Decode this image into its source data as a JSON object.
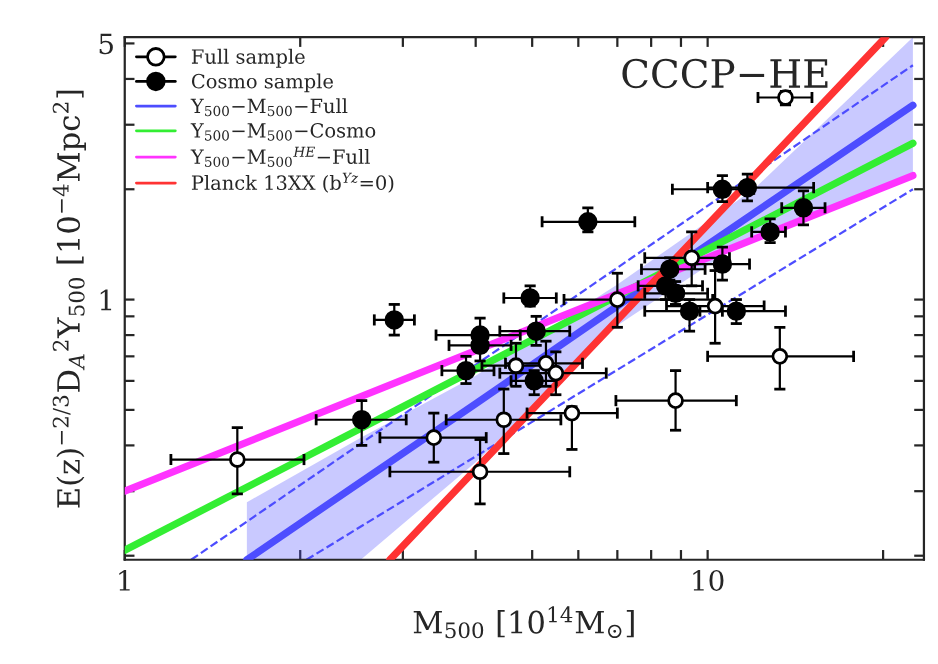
{
  "chart_data": {
    "type": "scatter",
    "title": "CCCP−HE",
    "xlabel": "M$_{500}$ [10$^{14}$M$_{⊙}$]",
    "ylabel": "E(z)$^{−2/3}$D$_{A}$$^{2}$Y$_{500}$ [10$^{−4}$Mpc$^{2}$]",
    "log": "xy",
    "xlim": [
      1,
      23.5
    ],
    "ylim": [
      0.195,
      5.2
    ],
    "xticks": [
      1,
      {
        "value": 2,
        "label": null
      },
      {
        "value": 3,
        "label": null
      },
      {
        "value": 4,
        "label": null
      },
      {
        "value": 5,
        "label": null
      },
      {
        "value": 6,
        "label": null
      },
      {
        "value": 7,
        "label": null
      },
      {
        "value": 8,
        "label": null
      },
      {
        "value": 9,
        "label": null
      },
      10,
      {
        "value": 20,
        "label": null
      }
    ],
    "yticks": [
      {
        "value": 0.2,
        "label": null
      },
      {
        "value": 0.3,
        "label": null
      },
      {
        "value": 0.4,
        "label": null
      },
      {
        "value": 0.5,
        "label": null
      },
      {
        "value": 0.6,
        "label": null
      },
      {
        "value": 0.7,
        "label": null
      },
      {
        "value": 0.8,
        "label": null
      },
      {
        "value": 0.9,
        "label": null
      },
      1,
      {
        "value": 2,
        "label": null
      },
      {
        "value": 3,
        "label": null
      },
      {
        "value": 4,
        "label": null
      },
      5
    ],
    "grid": false,
    "legend": "top left",
    "series": [
      {
        "name": "Full sample",
        "marker": "circle",
        "color": "#000000",
        "x": [
          1.56,
          3.39,
          4.07,
          4.47,
          4.69,
          5.28,
          5.49,
          5.85,
          7.0,
          8.81,
          9.39,
          10.3,
          13.3,
          13.6
        ],
        "values": [
          0.366,
          0.42,
          0.339,
          0.47,
          0.66,
          0.67,
          0.63,
          0.49,
          1.0,
          0.53,
          1.3,
          0.96,
          0.7,
          3.56
        ],
        "errors": [
          [
            0.295,
            0.447
          ],
          [
            0.36,
            0.49
          ],
          [
            0.277,
            0.415
          ],
          [
            0.38,
            0.57
          ],
          [
            0.58,
            0.76
          ],
          [
            0.58,
            0.77
          ],
          [
            0.55,
            0.72
          ],
          [
            0.39,
            0.51
          ],
          [
            0.84,
            1.18
          ],
          [
            0.44,
            0.64
          ],
          [
            1.09,
            1.53
          ],
          [
            0.76,
            1.2
          ],
          [
            0.57,
            0.84
          ],
          [
            3.4,
            3.7
          ]
        ],
        "xerrors": [
          [
            1.2,
            2.03
          ],
          [
            2.74,
            4.17
          ],
          [
            2.85,
            5.8
          ],
          [
            3.56,
            5.6
          ],
          [
            4.1,
            5.3
          ],
          [
            4.5,
            6.1
          ],
          [
            4.4,
            6.7
          ],
          [
            4.9,
            7.0
          ],
          [
            5.67,
            10.2
          ],
          [
            6.96,
            11.2
          ],
          [
            7.8,
            10.9
          ],
          [
            8.5,
            12.5
          ],
          [
            10.0,
            17.8
          ],
          [
            12.2,
            15.1
          ]
        ]
      },
      {
        "name": "Cosmo sample",
        "marker": "circle",
        "color": "#000000",
        "x": [
          2.55,
          2.9,
          3.85,
          4.07,
          4.07,
          4.96,
          5.04,
          5.08,
          6.23,
          8.47,
          8.61,
          8.81,
          9.31,
          10.6,
          10.6,
          11.2,
          11.7,
          12.8,
          14.6
        ],
        "values": [
          0.47,
          0.88,
          0.64,
          0.8,
          0.75,
          1.01,
          0.6,
          0.82,
          1.63,
          1.09,
          1.21,
          1.04,
          0.93,
          1.25,
          2.0,
          0.93,
          2.02,
          1.53,
          1.78
        ],
        "errors": [
          [
            0.4,
            0.53
          ],
          [
            0.8,
            0.97
          ],
          [
            0.59,
            0.7
          ],
          [
            0.74,
            0.89
          ],
          [
            0.68,
            0.82
          ],
          [
            0.96,
            1.09
          ],
          [
            0.55,
            0.64
          ],
          [
            0.75,
            0.9
          ],
          [
            1.53,
            1.78
          ],
          [
            1.0,
            1.2
          ],
          [
            1.13,
            1.3
          ],
          [
            0.97,
            1.12
          ],
          [
            0.82,
            1.0
          ],
          [
            1.13,
            1.39
          ],
          [
            1.85,
            2.18
          ],
          [
            0.86,
            1.0
          ],
          [
            1.86,
            2.2
          ],
          [
            1.43,
            1.66
          ],
          [
            1.6,
            1.98
          ]
        ],
        "xerrors": [
          [
            2.13,
            3.04
          ],
          [
            2.68,
            3.14
          ],
          [
            3.5,
            4.3
          ],
          [
            3.42,
            4.77
          ],
          [
            3.6,
            4.6
          ],
          [
            4.47,
            5.5
          ],
          [
            4.6,
            5.5
          ],
          [
            4.4,
            5.8
          ],
          [
            5.2,
            7.5
          ],
          [
            7.6,
            9.8
          ],
          [
            7.7,
            9.9
          ],
          [
            7.8,
            10.0
          ],
          [
            7.8,
            10.6
          ],
          [
            9.5,
            11.8
          ],
          [
            8.7,
            12.0
          ],
          [
            9.7,
            13.6
          ],
          [
            10.0,
            15.2
          ],
          [
            11.9,
            13.6
          ],
          [
            13.4,
            15.9
          ]
        ]
      },
      {
        "name": "Y$_{500}$−M$_{500}$−Full",
        "type": "line",
        "marker": "none",
        "color": "#4d4dff",
        "x": [
          1.62,
          2.54,
          4,
          7,
          12,
          22.5
        ],
        "values": [
          0.195,
          0.318,
          0.52,
          0.96,
          1.72,
          3.39
        ],
        "lower": [
          0.195,
          0.195,
          0.36,
          0.85,
          1.5,
          2.2
        ],
        "upper": [
          0.28,
          0.42,
          0.62,
          1.1,
          2.0,
          5.2
        ]
      },
      {
        "name": "Y$_{500}$−M$_{500}$−Cosmo",
        "type": "line",
        "marker": "none",
        "color": "#33ee33",
        "x": [
          1,
          22.5
        ],
        "values": [
          0.207,
          2.67
        ]
      },
      {
        "name": "Y$_{500}$−M$_{500}$$^{HE}$−Full",
        "type": "line",
        "marker": "none",
        "color": "#ff33ff",
        "x": [
          1,
          22.5
        ],
        "values": [
          0.3,
          2.18
        ]
      },
      {
        "name": "Planck 13XX (b$^{Yz}$=0)",
        "type": "line",
        "marker": "none",
        "color": "#ff3333",
        "x": [
          2.85,
          20.2
        ],
        "values": [
          0.195,
          5.2
        ]
      },
      {
        "type": "line",
        "marker": "none",
        "color": "#4d4dff",
        "line_style": "dashed",
        "x": [
          1.3,
          22.5
        ],
        "values": [
          0.195,
          4.36
        ]
      },
      {
        "type": "line",
        "marker": "none",
        "color": "#4d4dff",
        "line_style": "dashed",
        "x": [
          2.05,
          22.5
        ],
        "values": [
          0.195,
          2.0
        ]
      }
    ]
  }
}
